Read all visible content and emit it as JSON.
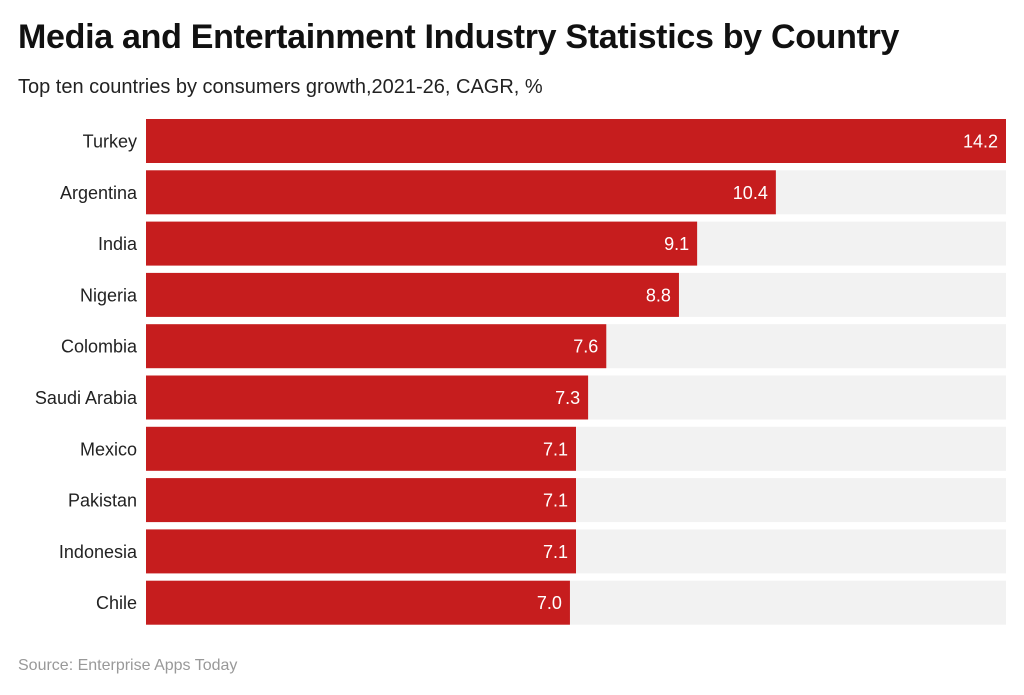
{
  "chart_data": {
    "type": "bar",
    "orientation": "horizontal",
    "title": "Media and Entertainment Industry Statistics by Country",
    "subtitle": "Top ten countries by consumers growth,2021-26, CAGR, %",
    "source": "Source: Enterprise Apps Today",
    "categories": [
      "Turkey",
      "Argentina",
      "India",
      "Nigeria",
      "Colombia",
      "Saudi Arabia",
      "Mexico",
      "Pakistan",
      "Indonesia",
      "Chile"
    ],
    "values": [
      14.2,
      10.4,
      9.1,
      8.8,
      7.6,
      7.3,
      7.1,
      7.1,
      7.1,
      7.0
    ],
    "value_labels": [
      "14.2",
      "10.4",
      "9.1",
      "8.8",
      "7.6",
      "7.3",
      "7.1",
      "7.1",
      "7.1",
      "7.0"
    ],
    "xlim": [
      0,
      14.2
    ],
    "grid": false,
    "colors": {
      "bar": "#c61d1e",
      "track": "#f2f2f2",
      "label": "#ffffff"
    }
  }
}
